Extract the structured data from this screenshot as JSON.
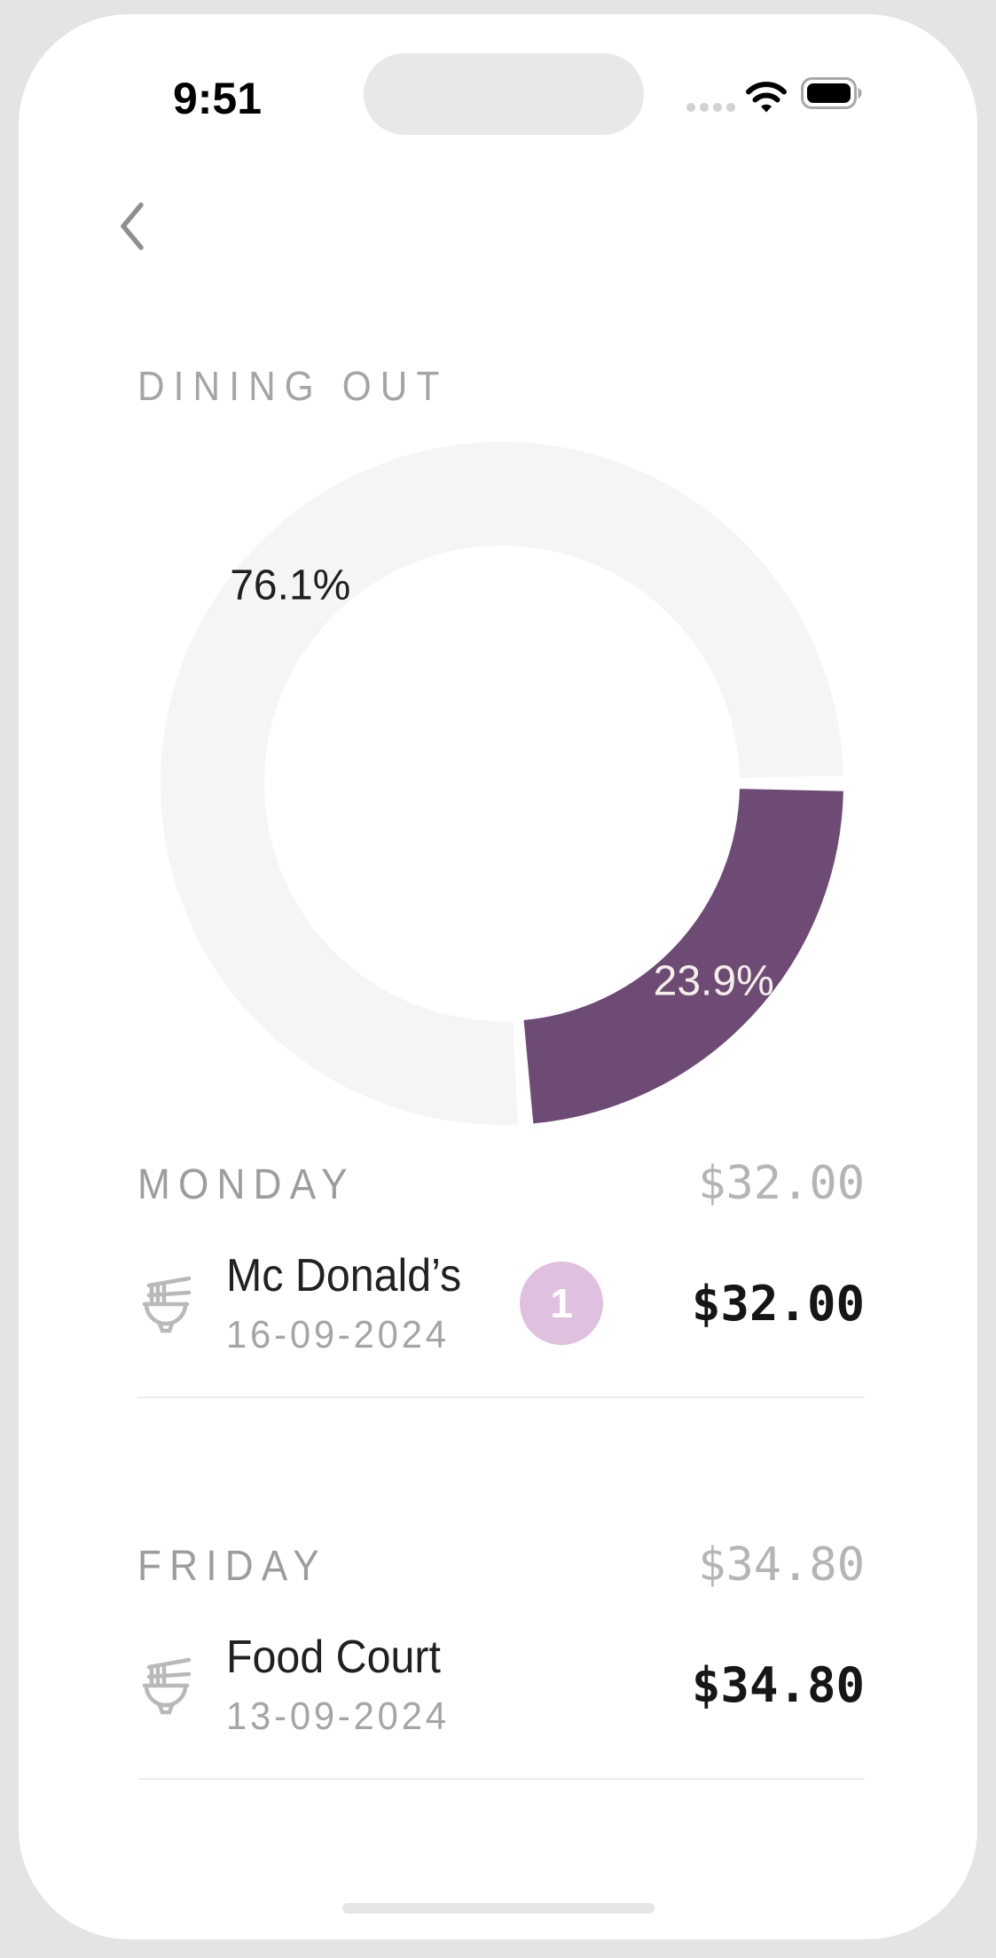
{
  "status_bar": {
    "time": "9:51",
    "cellular_icon": "cellular-signal-dots",
    "wifi_icon": "wifi-full",
    "battery_icon": "battery-full"
  },
  "nav": {
    "back_icon": "chevron-left"
  },
  "header": {
    "title": "DINING OUT",
    "title_color": "#a5a5a5"
  },
  "chart_data": {
    "type": "pie",
    "subtype": "donut",
    "title": "DINING OUT spending share",
    "rotation_deg_clockwise_from_east": 0,
    "ring_outer_radius_px": 385,
    "ring_thickness_px": 117,
    "pad_angle_deg": 1.3,
    "legend": "none",
    "labels_position": "inside-ring-mid-radius",
    "slices": [
      {
        "label": "23.9%",
        "value": 23.9,
        "color": "#6e4b74",
        "label_color": "#f4efe8"
      },
      {
        "label": "76.1%",
        "value": 76.1,
        "color": "#f5f5f5",
        "label_color": "#1f1f1f"
      }
    ]
  },
  "sections": [
    {
      "day": "MONDAY",
      "total": "$32.00",
      "entries": [
        {
          "icon": "noodle-bowl",
          "name": "Mc Donald’s",
          "date": "16-09-2024",
          "count_badge": "1",
          "amount": "$32.00"
        }
      ]
    },
    {
      "day": "FRIDAY",
      "total": "$34.80",
      "entries": [
        {
          "icon": "noodle-bowl",
          "name": "Food Court",
          "date": "13-09-2024",
          "amount": "$34.80"
        }
      ]
    }
  ],
  "colors": {
    "outer_background": "#e4e4e4",
    "phone_background": "#ffffff",
    "accent_purple": "#6e4b74",
    "badge_background": "#dfc1df",
    "divider": "#ececec",
    "icon_gray": "#b9b9b9"
  }
}
